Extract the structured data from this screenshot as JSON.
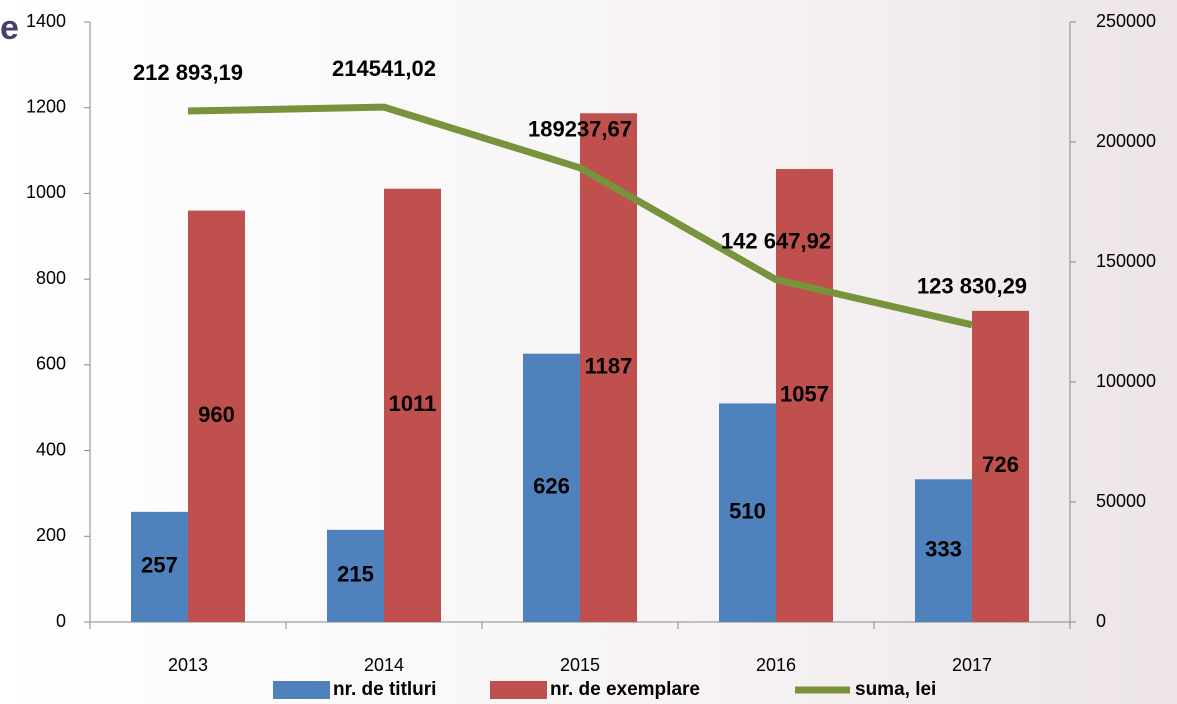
{
  "chart_data": {
    "type": "bar",
    "title": "e",
    "categories": [
      "2013",
      "2014",
      "2015",
      "2016",
      "2017"
    ],
    "series": [
      {
        "name": "nr. de titluri",
        "color": "#4f81bd",
        "values": [
          257,
          215,
          626,
          510,
          333
        ]
      },
      {
        "name": "nr. de exemplare",
        "color": "#c0504d",
        "values": [
          960,
          1011,
          1187,
          1057,
          726
        ]
      },
      {
        "name": "suma, lei",
        "color": "#77933c",
        "type": "line",
        "axis": "y2",
        "values": [
          212893.19,
          214541.02,
          189237.67,
          142647.92,
          123830.29
        ],
        "value_labels": [
          "212 893,19",
          "214541,02",
          "189237,67",
          "142 647,92",
          "123 830,29"
        ]
      }
    ],
    "ylim": [
      0,
      1400
    ],
    "yticks": [
      0,
      200,
      400,
      600,
      800,
      1000,
      1200,
      1400
    ],
    "y2lim": [
      0,
      250000
    ],
    "y2ticks": [
      0,
      50000,
      100000,
      150000,
      200000,
      250000
    ],
    "legend": "bottom",
    "grid": false
  }
}
